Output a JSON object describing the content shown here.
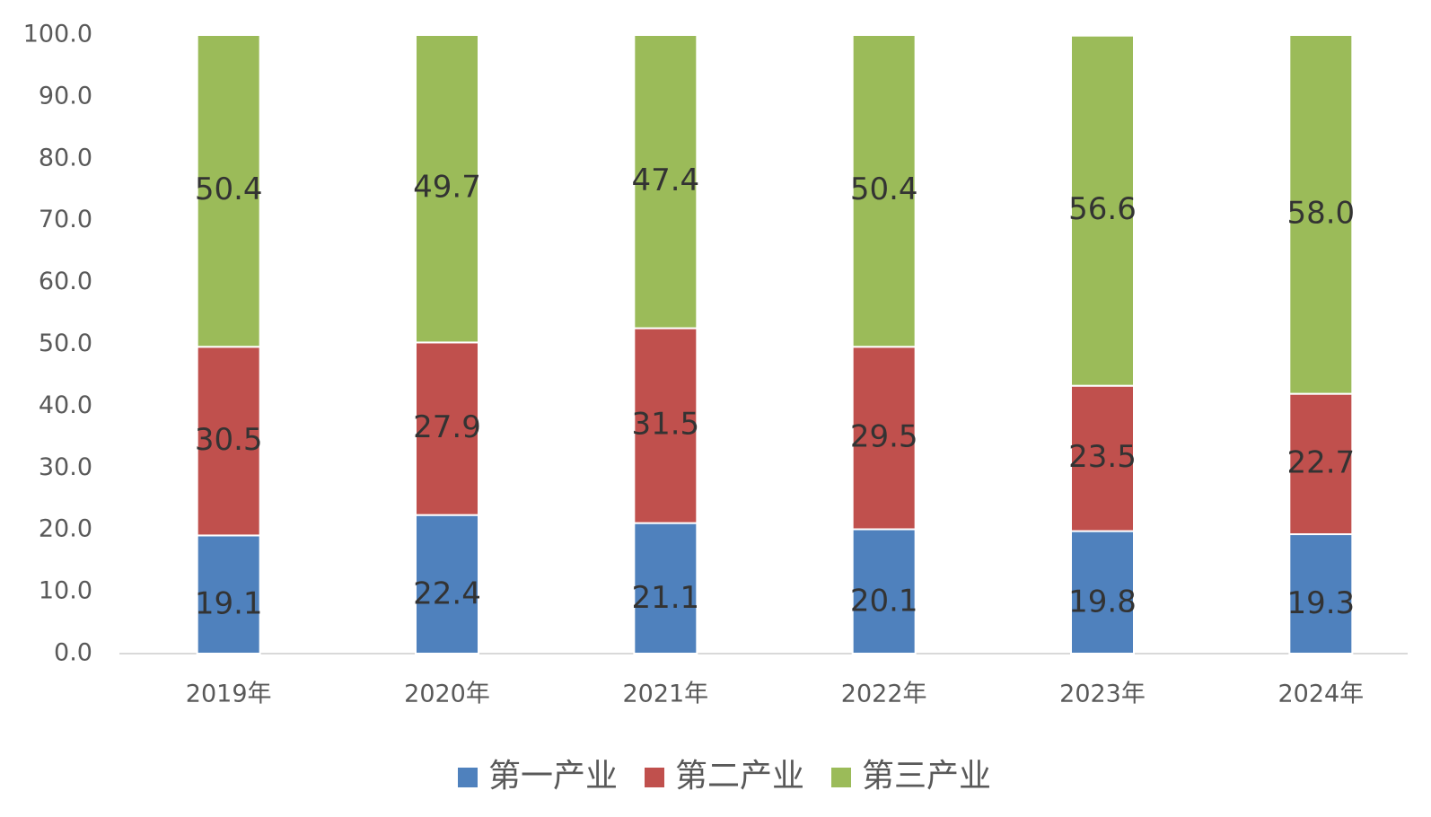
{
  "chart_data": {
    "type": "stacked_bar",
    "categories": [
      "2019年",
      "2020年",
      "2021年",
      "2022年",
      "2023年",
      "2024年"
    ],
    "series": [
      {
        "name": "第一产业",
        "color": "#4f81bd",
        "values": [
          19.1,
          22.4,
          21.1,
          20.1,
          19.8,
          19.3
        ]
      },
      {
        "name": "第二产业",
        "color": "#c0504d",
        "values": [
          30.5,
          27.9,
          31.5,
          29.5,
          23.5,
          22.7
        ]
      },
      {
        "name": "第三产业",
        "color": "#9bbb59",
        "values": [
          50.4,
          49.7,
          47.4,
          50.4,
          56.6,
          58
        ],
        "value_labels": [
          "50.4",
          "49.7",
          "47.4",
          "50.4",
          "56.6",
          "58.0"
        ]
      }
    ],
    "ylim": [
      0,
      100
    ],
    "yticks": [
      {
        "value": 0,
        "label": "0.0"
      },
      {
        "value": 10,
        "label": "10.0"
      },
      {
        "value": 20,
        "label": "20.0"
      },
      {
        "value": 30,
        "label": "30.0"
      },
      {
        "value": 40,
        "label": "40.0"
      },
      {
        "value": 50,
        "label": "50.0"
      },
      {
        "value": 60,
        "label": "60.0"
      },
      {
        "value": 70,
        "label": "70.0"
      },
      {
        "value": 80,
        "label": "80.0"
      },
      {
        "value": 90,
        "label": "90.0"
      },
      {
        "value": 100,
        "label": "100.0"
      }
    ],
    "grid": false,
    "legend": "bottom"
  }
}
